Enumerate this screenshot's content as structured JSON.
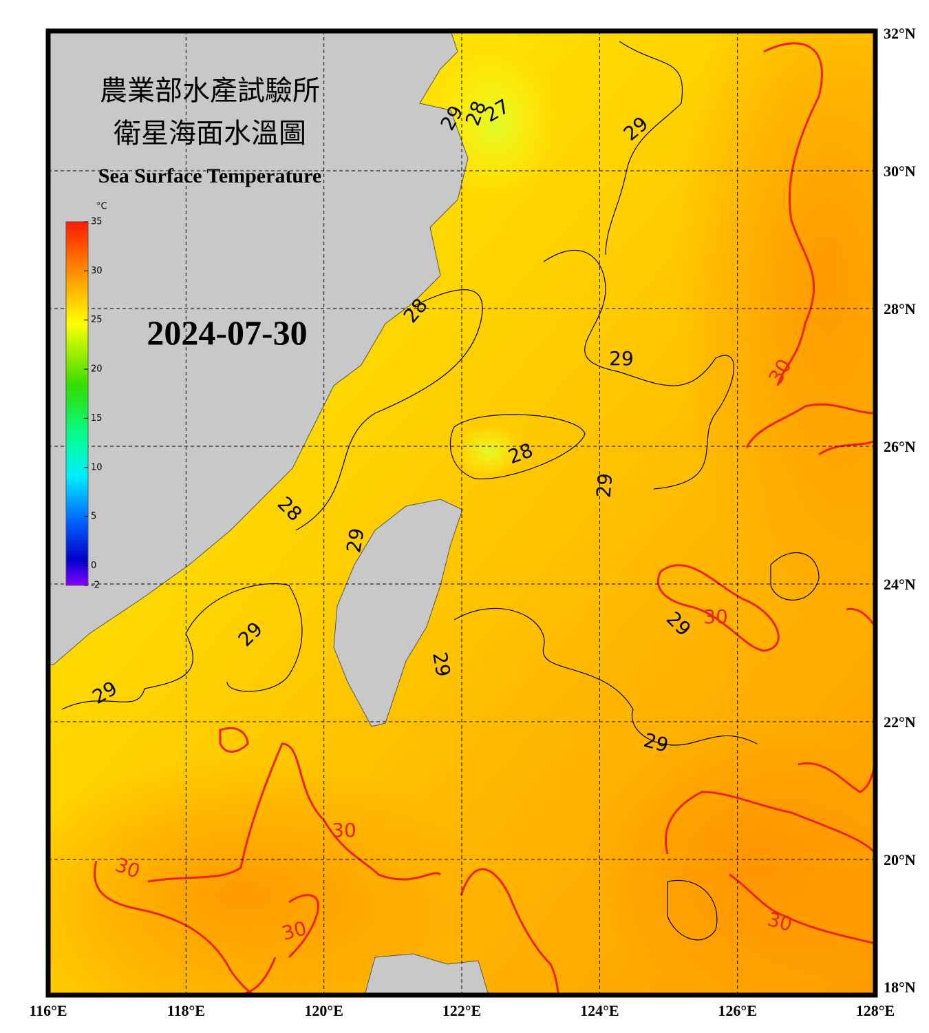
{
  "header": {
    "title_zh_1": "農業部水產試驗所",
    "title_zh_2": "衛星海面水溫圖",
    "title_en": "Sea Surface Temperature",
    "date": "2024-07-30"
  },
  "colorbar": {
    "unit": "°C",
    "ticks": [
      35,
      30,
      25,
      20,
      15,
      10,
      5,
      0,
      -2
    ],
    "range": [
      -2,
      35
    ]
  },
  "axes": {
    "latitudes": [
      "32°N",
      "30°N",
      "28°N",
      "26°N",
      "24°N",
      "22°N",
      "20°N",
      "18°N"
    ],
    "longitudes": [
      "116°E",
      "118°E",
      "120°E",
      "122°E",
      "124°E",
      "126°E",
      "128°E"
    ]
  },
  "contour_labels": [
    {
      "text": "29",
      "color": "#000000"
    },
    {
      "text": "28",
      "color": "#000000"
    },
    {
      "text": "27",
      "color": "#000000"
    },
    {
      "text": "29",
      "color": "#000000"
    },
    {
      "text": "28",
      "color": "#000000"
    },
    {
      "text": "29",
      "color": "#000000"
    },
    {
      "text": "30",
      "color": "#ee2211"
    },
    {
      "text": "28",
      "color": "#000000"
    },
    {
      "text": "29",
      "color": "#000000"
    },
    {
      "text": "28",
      "color": "#000000"
    },
    {
      "text": "29",
      "color": "#000000"
    },
    {
      "text": "29",
      "color": "#000000"
    },
    {
      "text": "29",
      "color": "#000000"
    },
    {
      "text": "29",
      "color": "#000000"
    },
    {
      "text": "30",
      "color": "#ee2211"
    },
    {
      "text": "29",
      "color": "#000000"
    },
    {
      "text": "29",
      "color": "#000000"
    },
    {
      "text": "30",
      "color": "#ee2211"
    },
    {
      "text": "30",
      "color": "#ee2211"
    },
    {
      "text": "30",
      "color": "#ee2211"
    },
    {
      "text": "30",
      "color": "#ee2211"
    }
  ]
}
